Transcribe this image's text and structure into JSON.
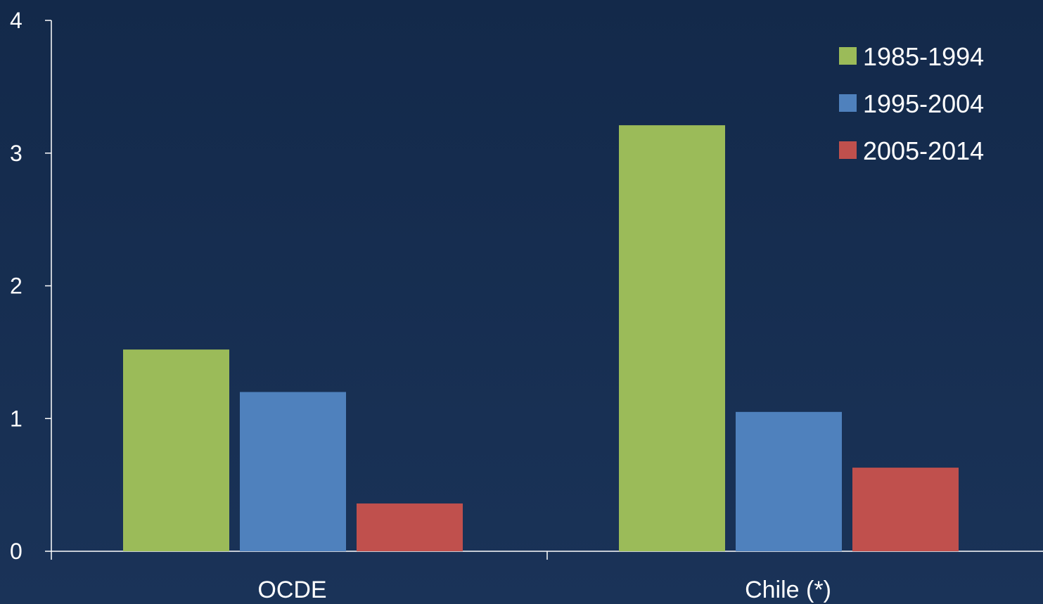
{
  "chart_data": {
    "type": "bar",
    "title": "",
    "xlabel": "",
    "ylabel": "",
    "categories": [
      "OCDE",
      "Chile (*)"
    ],
    "series": [
      {
        "name": "1985-1994",
        "color": "#9bbb59",
        "values": [
          1.52,
          3.21
        ]
      },
      {
        "name": "1995-2004",
        "color": "#4f81bd",
        "values": [
          1.2,
          1.05
        ]
      },
      {
        "name": "2005-2014",
        "color": "#c0504d",
        "values": [
          0.36,
          0.63
        ]
      }
    ],
    "ylim": [
      0,
      4
    ],
    "yticks": [
      "0",
      "1",
      "2",
      "3",
      "4"
    ],
    "grid": false,
    "legend_position": "top-right"
  }
}
